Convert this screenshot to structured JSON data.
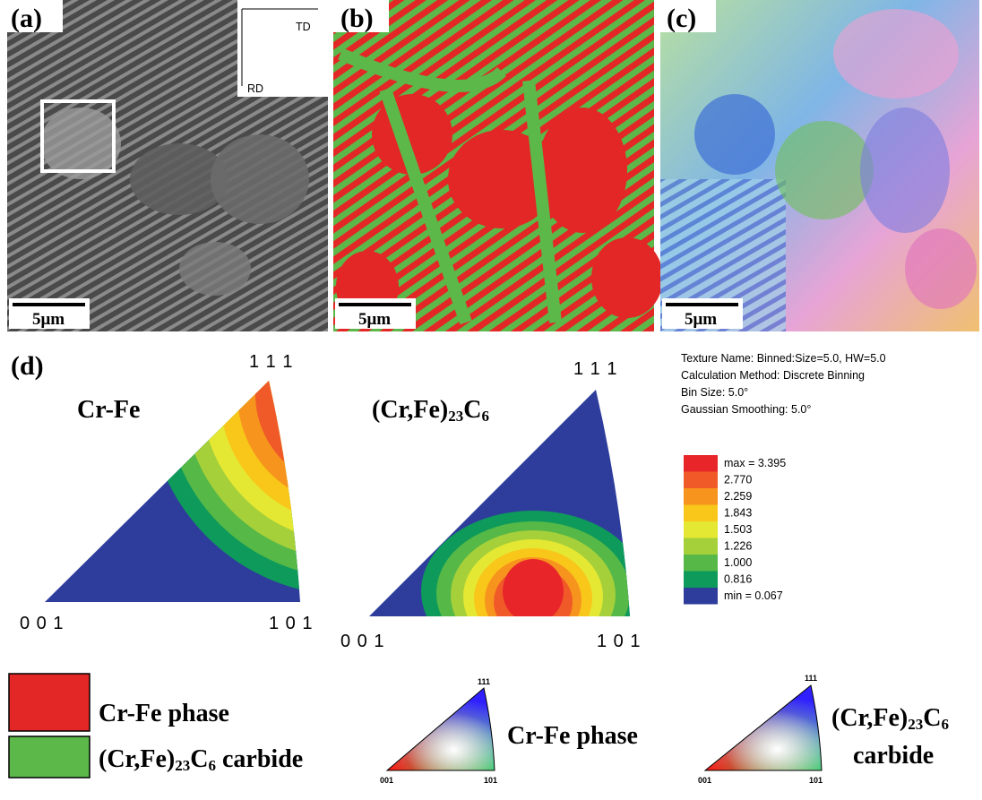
{
  "panels": {
    "a": {
      "label": "(a)",
      "td": "TD",
      "rd": "RD",
      "scale": "5μm"
    },
    "b": {
      "label": "(b)",
      "scale": "5μm"
    },
    "c": {
      "label": "(c)",
      "scale": "5μm"
    }
  },
  "d": {
    "label": "(d)",
    "ipf1": {
      "title": "Cr-Fe",
      "top": "1 1 1",
      "left": "0 0 1",
      "right": "1 0 1"
    },
    "ipf2": {
      "title": {
        "a": "(Cr,Fe)",
        "b": "23",
        "c": "C",
        "d": "6"
      },
      "top": "1 1 1",
      "left": "0 0 1",
      "right": "1 0 1"
    },
    "texture": [
      "Texture Name: Binned:Size=5.0, HW=5.0",
      "Calculation Method: Discrete Binning",
      "Bin Size: 5.0°",
      "Gaussian Smoothing: 5.0°"
    ],
    "colorbar": [
      "max = 3.395",
      "2.770",
      "2.259",
      "1.843",
      "1.503",
      "1.226",
      "1.000",
      "0.816",
      "min = 0.067"
    ]
  },
  "legend": {
    "phase": "Cr-Fe phase",
    "carbide": {
      "a": "(Cr,Fe)",
      "b": "23",
      "c": "C",
      "d": "6",
      "e": " carbide"
    }
  },
  "keys": {
    "k1": {
      "top": "111",
      "left": "001",
      "right": "101",
      "label": "Cr-Fe phase"
    },
    "k2": {
      "top": "111",
      "left": "001",
      "right": "101",
      "label1": {
        "a": "(Cr,Fe)",
        "b": "23",
        "c": "C",
        "d": "6"
      },
      "label2": "carbide"
    }
  }
}
